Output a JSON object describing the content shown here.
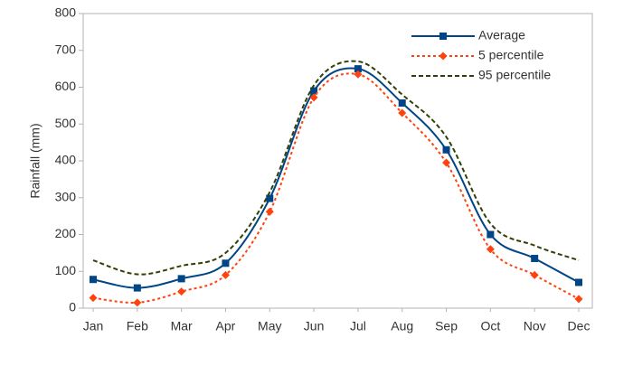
{
  "chart_data": {
    "type": "line",
    "y_label": "Rainfall (mm)",
    "categories": [
      "Jan",
      "Feb",
      "Mar",
      "Apr",
      "May",
      "Jun",
      "Jul",
      "Aug",
      "Sep",
      "Oct",
      "Nov",
      "Dec"
    ],
    "series": [
      {
        "name": "Average",
        "color": "#004586",
        "marker": "square",
        "line_style": "solid",
        "values": [
          78,
          55,
          80,
          122,
          298,
          590,
          650,
          557,
          430,
          200,
          135,
          70
        ]
      },
      {
        "name": "5 percentile",
        "color": "#ff420e",
        "marker": "diamond",
        "line_style": "dot",
        "values": [
          28,
          15,
          45,
          90,
          262,
          572,
          635,
          530,
          395,
          160,
          90,
          25
        ]
      },
      {
        "name": "95 percentile",
        "color": "#314004",
        "marker": "none",
        "line_style": "dash",
        "values": [
          130,
          92,
          115,
          150,
          315,
          605,
          670,
          580,
          465,
          230,
          170,
          130
        ]
      }
    ],
    "ylim": [
      0,
      800
    ],
    "yticks": [
      0,
      100,
      200,
      300,
      400,
      500,
      600,
      700,
      800
    ],
    "smooth": true,
    "grid": false,
    "legend": "top-right"
  }
}
